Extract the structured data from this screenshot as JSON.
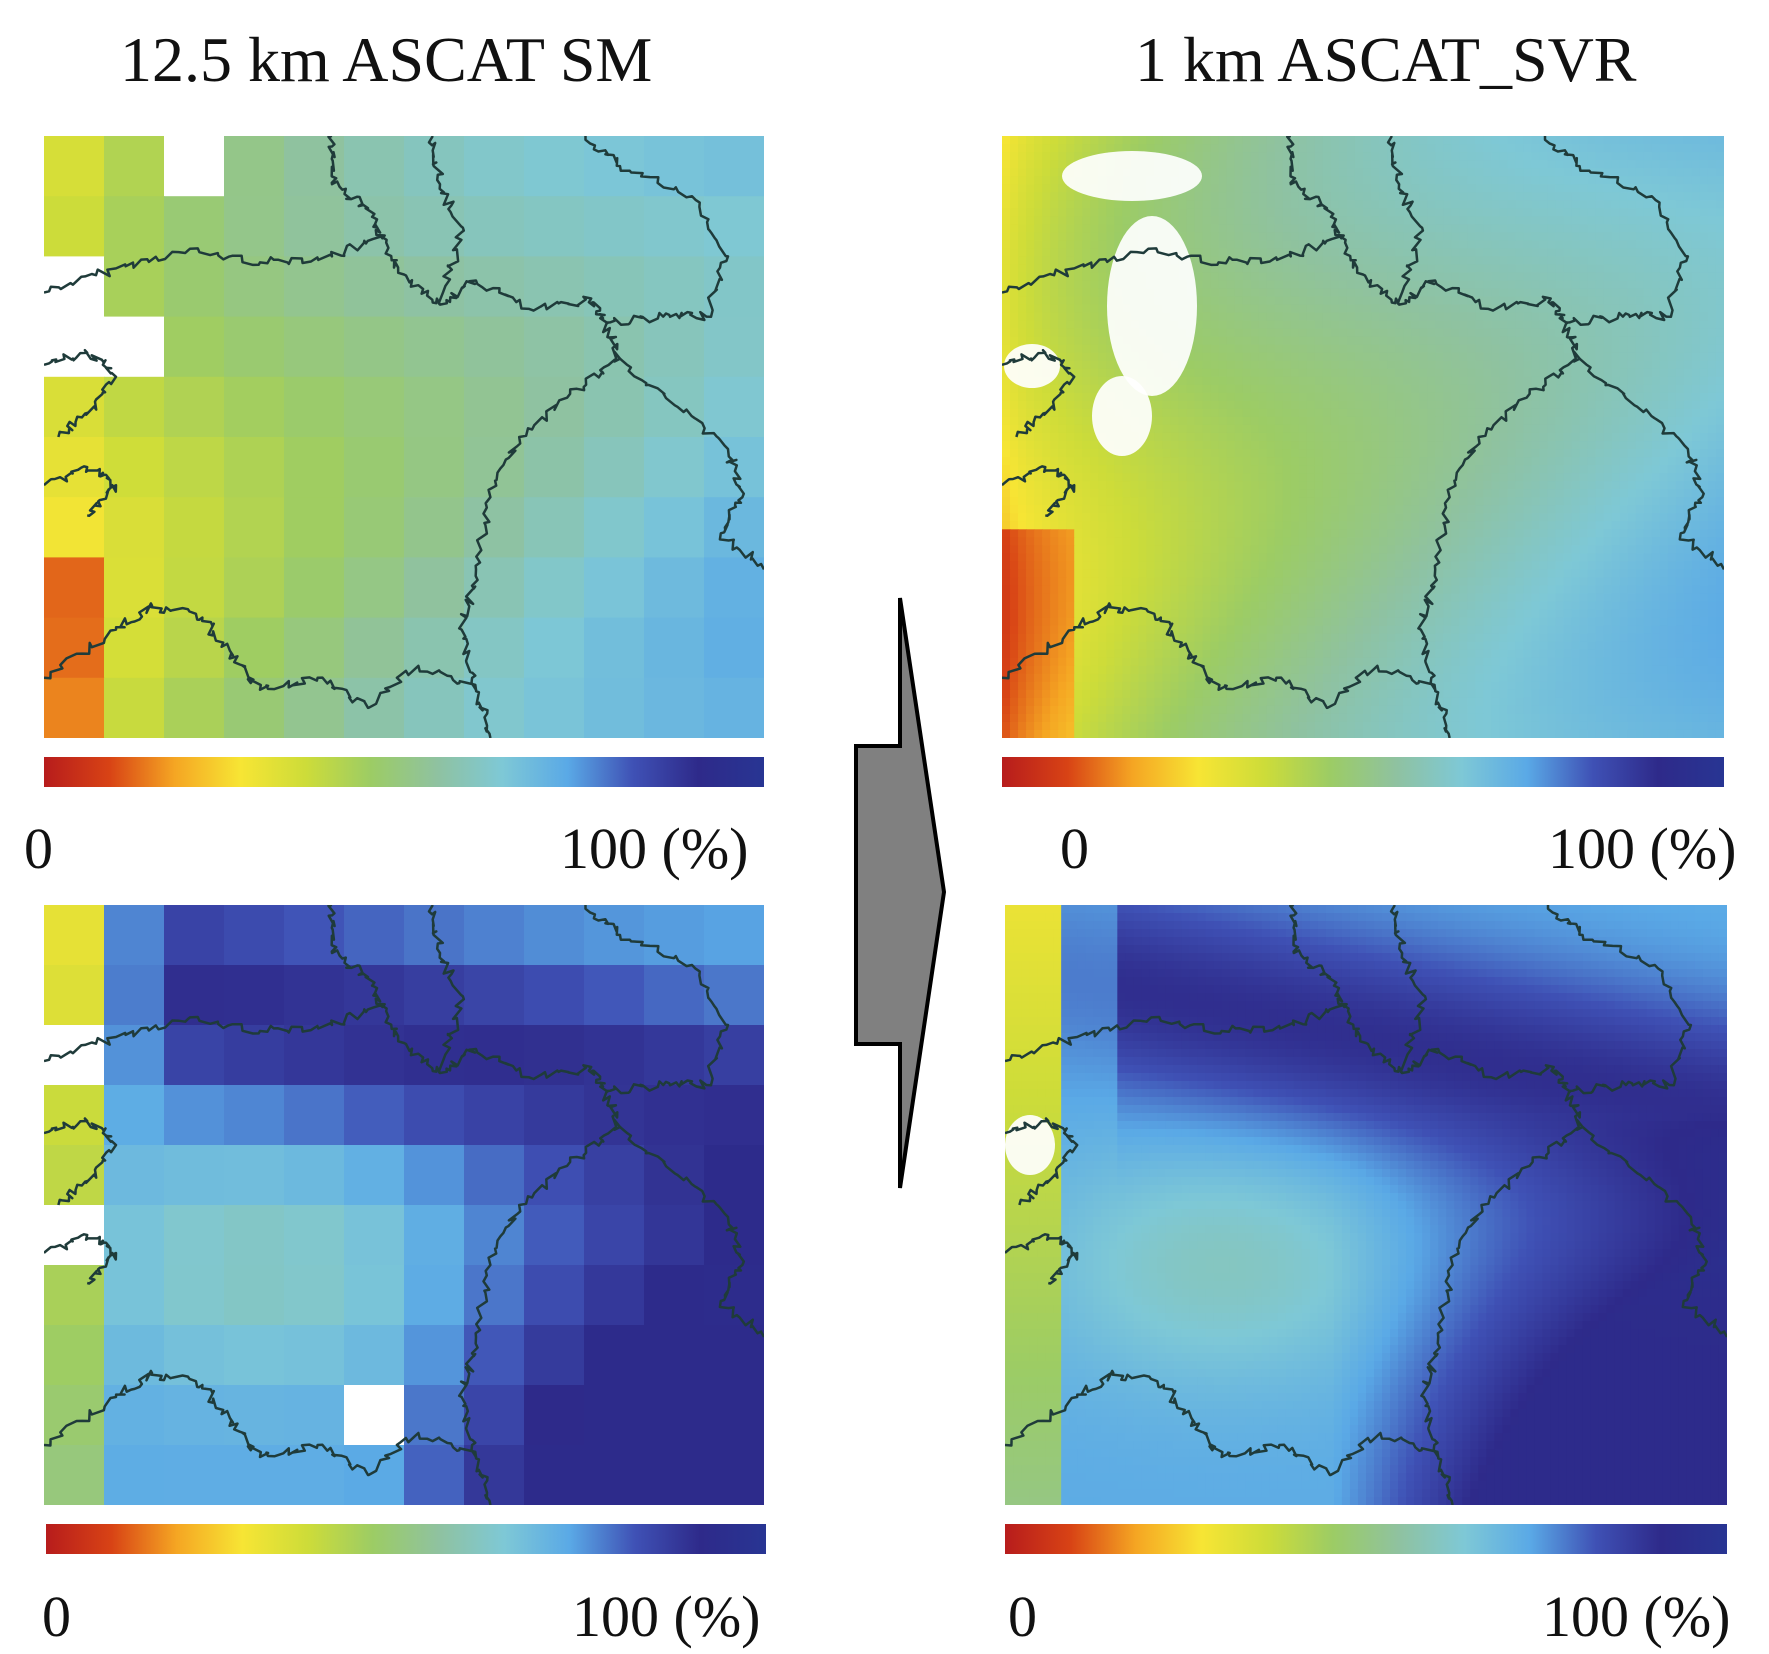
{
  "titles": {
    "left": "12.5 km ASCAT SM",
    "right": "1 km ASCAT_SVR"
  },
  "colorbar": {
    "min_label": "0",
    "max_label": "100 (%)",
    "stops": [
      "#b71c1c",
      "#d84315",
      "#f5a623",
      "#f7e534",
      "#cddc39",
      "#9ccc65",
      "#8fc2a0",
      "#7ec8d6",
      "#5aa9e6",
      "#3f51b5",
      "#2e2a8a",
      "#283593"
    ]
  },
  "arrow": {
    "fill": "#808080",
    "stroke": "#000000"
  },
  "panels": [
    {
      "id": "coarse-top",
      "resolution": "12.5 km",
      "colorbar_min": "0",
      "colorbar_max": "100 (%)"
    },
    {
      "id": "fine-top",
      "resolution": "1 km",
      "colorbar_min": "0",
      "colorbar_max": "100 (%)"
    },
    {
      "id": "coarse-bottom",
      "resolution": "12.5 km",
      "colorbar_min": "0",
      "colorbar_max": "100 (%)"
    },
    {
      "id": "fine-bottom",
      "resolution": "1 km",
      "colorbar_min": "0",
      "colorbar_max": "100 (%)"
    }
  ]
}
